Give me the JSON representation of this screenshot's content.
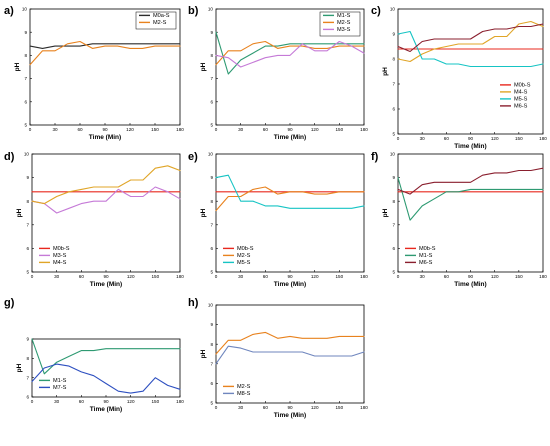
{
  "colors": {
    "M0a-S": "#2b2b2b",
    "M0b-S": "#e8281e",
    "M1-S": "#2e9a72",
    "M2-S": "#e8821e",
    "M3-S": "#c57ad7",
    "M4-S": "#e0a527",
    "M5-S": "#16c4c4",
    "M6-S": "#8a1f2e",
    "M7-S": "#2d4fc0",
    "M8-S": "#6f86be"
  },
  "chart_data": [
    {
      "label": "a)",
      "type": "line",
      "xlabel": "Time (Min)",
      "ylabel": "pH",
      "xlim": [
        0,
        180
      ],
      "ylim": [
        5,
        10
      ],
      "xticks": [
        0,
        30,
        60,
        90,
        120,
        150,
        180
      ],
      "yticks": [
        5,
        6,
        7,
        8,
        9,
        10
      ],
      "x": [
        0,
        15,
        30,
        45,
        60,
        75,
        90,
        105,
        120,
        135,
        150,
        165,
        180
      ],
      "legend_position": "top-right",
      "series": [
        {
          "name": "M0a-S",
          "values": [
            8.4,
            8.3,
            8.4,
            8.4,
            8.4,
            8.5,
            8.5,
            8.5,
            8.5,
            8.5,
            8.5,
            8.5,
            8.5
          ]
        },
        {
          "name": "M2-S",
          "values": [
            7.6,
            8.2,
            8.2,
            8.5,
            8.6,
            8.3,
            8.4,
            8.4,
            8.3,
            8.3,
            8.4,
            8.4,
            8.4
          ]
        }
      ]
    },
    {
      "label": "b)",
      "type": "line",
      "xlabel": "Time (Min)",
      "ylabel": "pH",
      "xlim": [
        0,
        180
      ],
      "ylim": [
        5,
        10
      ],
      "xticks": [
        0,
        30,
        60,
        90,
        120,
        150,
        180
      ],
      "yticks": [
        5,
        6,
        7,
        8,
        9,
        10
      ],
      "x": [
        0,
        15,
        30,
        45,
        60,
        75,
        90,
        105,
        120,
        135,
        150,
        165,
        180
      ],
      "legend_position": "top-right",
      "series": [
        {
          "name": "M1-S",
          "values": [
            9.0,
            7.2,
            7.8,
            8.1,
            8.4,
            8.4,
            8.5,
            8.5,
            8.5,
            8.5,
            8.5,
            8.5,
            8.5
          ]
        },
        {
          "name": "M2-S",
          "values": [
            7.6,
            8.2,
            8.2,
            8.5,
            8.6,
            8.3,
            8.4,
            8.4,
            8.3,
            8.3,
            8.4,
            8.4,
            8.4
          ]
        },
        {
          "name": "M3-S",
          "values": [
            8.0,
            7.9,
            7.5,
            7.7,
            7.9,
            8.0,
            8.0,
            8.5,
            8.2,
            8.2,
            8.6,
            8.4,
            8.1
          ]
        }
      ]
    },
    {
      "label": "c)",
      "type": "line",
      "xlabel": "Time (Min)",
      "ylabel": "pH",
      "xlim": [
        0,
        180
      ],
      "ylim": [
        5,
        10
      ],
      "xticks": [
        0,
        30,
        60,
        90,
        120,
        150,
        180
      ],
      "yticks": [
        5,
        6,
        7,
        8,
        9,
        10
      ],
      "x": [
        0,
        15,
        30,
        45,
        60,
        75,
        90,
        105,
        120,
        135,
        150,
        165,
        180
      ],
      "legend_position": "center-right",
      "series": [
        {
          "name": "M0b-S",
          "values": [
            8.4,
            8.4,
            8.4,
            8.4,
            8.4,
            8.4,
            8.4,
            8.4,
            8.4,
            8.4,
            8.4,
            8.4,
            8.4
          ]
        },
        {
          "name": "M4-S",
          "values": [
            8.0,
            7.9,
            8.2,
            8.4,
            8.5,
            8.6,
            8.6,
            8.6,
            8.9,
            8.9,
            9.4,
            9.5,
            9.3
          ]
        },
        {
          "name": "M5-S",
          "values": [
            9.0,
            9.1,
            8.0,
            8.0,
            7.8,
            7.8,
            7.7,
            7.7,
            7.7,
            7.7,
            7.7,
            7.7,
            7.8
          ]
        },
        {
          "name": "M6-S",
          "values": [
            8.5,
            8.3,
            8.7,
            8.8,
            8.8,
            8.8,
            8.8,
            9.1,
            9.2,
            9.2,
            9.3,
            9.3,
            9.4
          ]
        }
      ]
    },
    {
      "label": "d)",
      "type": "line",
      "xlabel": "Time (Min)",
      "ylabel": "pH",
      "xlim": [
        0,
        180
      ],
      "ylim": [
        5,
        10
      ],
      "xticks": [
        0,
        30,
        60,
        90,
        120,
        150,
        180
      ],
      "yticks": [
        5,
        6,
        7,
        8,
        9,
        10
      ],
      "x": [
        0,
        15,
        30,
        45,
        60,
        75,
        90,
        105,
        120,
        135,
        150,
        165,
        180
      ],
      "legend_position": "bottom-left",
      "series": [
        {
          "name": "M0b-S",
          "values": [
            8.4,
            8.4,
            8.4,
            8.4,
            8.4,
            8.4,
            8.4,
            8.4,
            8.4,
            8.4,
            8.4,
            8.4,
            8.4
          ]
        },
        {
          "name": "M3-S",
          "values": [
            8.0,
            7.9,
            7.5,
            7.7,
            7.9,
            8.0,
            8.0,
            8.5,
            8.2,
            8.2,
            8.6,
            8.4,
            8.1
          ]
        },
        {
          "name": "M4-S",
          "values": [
            8.0,
            7.9,
            8.2,
            8.4,
            8.5,
            8.6,
            8.6,
            8.6,
            8.9,
            8.9,
            9.4,
            9.5,
            9.3
          ]
        }
      ]
    },
    {
      "label": "e)",
      "type": "line",
      "xlabel": "Time (Min)",
      "ylabel": "pH",
      "xlim": [
        0,
        180
      ],
      "ylim": [
        5,
        10
      ],
      "xticks": [
        0,
        30,
        60,
        90,
        120,
        150,
        180
      ],
      "yticks": [
        5,
        6,
        7,
        8,
        9,
        10
      ],
      "x": [
        0,
        15,
        30,
        45,
        60,
        75,
        90,
        105,
        120,
        135,
        150,
        165,
        180
      ],
      "legend_position": "bottom-left",
      "series": [
        {
          "name": "M0b-S",
          "values": [
            8.4,
            8.4,
            8.4,
            8.4,
            8.4,
            8.4,
            8.4,
            8.4,
            8.4,
            8.4,
            8.4,
            8.4,
            8.4
          ]
        },
        {
          "name": "M2-S",
          "values": [
            7.6,
            8.2,
            8.2,
            8.5,
            8.6,
            8.3,
            8.4,
            8.4,
            8.3,
            8.3,
            8.4,
            8.4,
            8.4
          ]
        },
        {
          "name": "M5-S",
          "values": [
            9.0,
            9.1,
            8.0,
            8.0,
            7.8,
            7.8,
            7.7,
            7.7,
            7.7,
            7.7,
            7.7,
            7.7,
            7.8
          ]
        }
      ]
    },
    {
      "label": "f)",
      "type": "line",
      "xlabel": "Time (Min)",
      "ylabel": "pH",
      "xlim": [
        0,
        180
      ],
      "ylim": [
        5,
        10
      ],
      "xticks": [
        0,
        30,
        60,
        90,
        120,
        150,
        180
      ],
      "yticks": [
        5,
        6,
        7,
        8,
        9,
        10
      ],
      "x": [
        0,
        15,
        30,
        45,
        60,
        75,
        90,
        105,
        120,
        135,
        150,
        165,
        180
      ],
      "legend_position": "bottom-left",
      "series": [
        {
          "name": "M0b-S",
          "values": [
            8.4,
            8.4,
            8.4,
            8.4,
            8.4,
            8.4,
            8.4,
            8.4,
            8.4,
            8.4,
            8.4,
            8.4,
            8.4
          ]
        },
        {
          "name": "M1-S",
          "values": [
            9.0,
            7.2,
            7.8,
            8.1,
            8.4,
            8.4,
            8.5,
            8.5,
            8.5,
            8.5,
            8.5,
            8.5,
            8.5
          ]
        },
        {
          "name": "M6-S",
          "values": [
            8.5,
            8.3,
            8.7,
            8.8,
            8.8,
            8.8,
            8.8,
            9.1,
            9.2,
            9.2,
            9.3,
            9.3,
            9.4
          ]
        }
      ]
    },
    {
      "label": "g)",
      "type": "line",
      "xlabel": "Time (Min)",
      "ylabel": "pH",
      "xlim": [
        0,
        180
      ],
      "ylim": [
        6,
        9
      ],
      "xticks": [
        0,
        30,
        60,
        90,
        120,
        150,
        180
      ],
      "yticks": [
        6,
        7,
        8,
        9
      ],
      "x": [
        0,
        15,
        30,
        45,
        60,
        75,
        90,
        105,
        120,
        135,
        150,
        165,
        180
      ],
      "legend_position": "bottom-left",
      "series": [
        {
          "name": "M1-S",
          "values": [
            9.0,
            7.2,
            7.8,
            8.1,
            8.4,
            8.4,
            8.5,
            8.5,
            8.5,
            8.5,
            8.5,
            8.5,
            8.5
          ]
        },
        {
          "name": "M7-S",
          "values": [
            6.8,
            7.5,
            7.7,
            7.6,
            7.3,
            7.1,
            6.7,
            6.3,
            6.2,
            6.3,
            7.0,
            6.6,
            6.4
          ]
        }
      ]
    },
    {
      "label": "h)",
      "type": "line",
      "xlabel": "Time (Min)",
      "ylabel": "pH",
      "xlim": [
        0,
        180
      ],
      "ylim": [
        5,
        10
      ],
      "xticks": [
        0,
        30,
        60,
        90,
        120,
        150,
        180
      ],
      "yticks": [
        5,
        6,
        7,
        8,
        9,
        10
      ],
      "x": [
        0,
        15,
        30,
        45,
        60,
        75,
        90,
        105,
        120,
        135,
        150,
        165,
        180
      ],
      "legend_position": "bottom-left",
      "series": [
        {
          "name": "M2-S",
          "values": [
            7.5,
            8.2,
            8.2,
            8.5,
            8.6,
            8.3,
            8.4,
            8.3,
            8.3,
            8.3,
            8.4,
            8.4,
            8.4
          ]
        },
        {
          "name": "M8-S",
          "values": [
            7.0,
            7.9,
            7.8,
            7.6,
            7.6,
            7.6,
            7.6,
            7.6,
            7.4,
            7.4,
            7.4,
            7.4,
            7.6
          ]
        }
      ]
    }
  ]
}
